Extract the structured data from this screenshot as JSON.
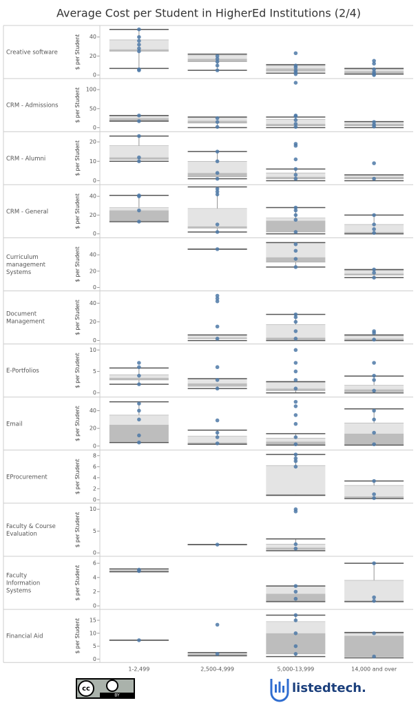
{
  "chart_data": {
    "type": "box",
    "title": "Average Cost per Student in HigherEd Institutions (2/4)",
    "y_label": "$ per Student",
    "categories": [
      "1-2,499",
      "2,500-4,999",
      "5,000-13,999",
      "14,000 and over"
    ],
    "color": "#4e79a7",
    "panels": [
      {
        "label": "Creative software",
        "ylim": [
          -1.5,
          48.5
        ],
        "yticks": [
          0,
          20,
          40
        ],
        "boxes": [
          {
            "min": 7,
            "q1": 25,
            "median": 27,
            "q3": 37,
            "max": 48,
            "points": [
              5,
              6,
              25,
              28,
              32,
              36,
              40,
              48
            ]
          },
          {
            "min": 5,
            "q1": 14,
            "median": 17,
            "q3": 21,
            "max": 22,
            "points": [
              5,
              10,
              14,
              17,
              20
            ]
          },
          {
            "min": 2,
            "q1": 4,
            "median": 7,
            "q3": 10,
            "max": 11,
            "points": [
              1,
              3,
              5,
              8,
              10,
              23
            ]
          },
          {
            "min": 1,
            "q1": 2,
            "median": 4,
            "q3": 6,
            "max": 7,
            "points": [
              0,
              1,
              3,
              6,
              12,
              15
            ]
          }
        ]
      },
      {
        "label": "CRM - Admissions",
        "ylim": [
          -5,
          120
        ],
        "yticks": [
          0,
          50,
          100
        ],
        "boxes": [
          {
            "min": 17,
            "q1": 18,
            "median": 25,
            "q3": 31,
            "max": 32,
            "points": [
              17,
              32
            ]
          },
          {
            "min": 0,
            "q1": 12,
            "median": 18,
            "q3": 27,
            "max": 28,
            "points": [
              2,
              15,
              25
            ]
          },
          {
            "min": 0,
            "q1": 5,
            "median": 10,
            "q3": 22,
            "max": 28,
            "points": [
              2,
              10,
              20,
              30,
              32,
              118
            ]
          },
          {
            "min": 0,
            "q1": 5,
            "median": 10,
            "q3": 15,
            "max": 16,
            "points": [
              3,
              8,
              15
            ]
          }
        ]
      },
      {
        "label": "CRM - Alumni",
        "ylim": [
          -1,
          23.5
        ],
        "yticks": [
          0,
          10,
          20
        ],
        "boxes": [
          {
            "min": 10,
            "q1": 11,
            "median": 12,
            "q3": 18,
            "max": 23,
            "points": [
              10,
              12,
              23
            ]
          },
          {
            "min": 1,
            "q1": 2,
            "median": 4,
            "q3": 10,
            "max": 15,
            "points": [
              1,
              4,
              10,
              15
            ]
          },
          {
            "min": 0,
            "q1": 1,
            "median": 2,
            "q3": 4,
            "max": 6,
            "points": [
              1,
              3,
              6,
              11,
              18,
              19
            ]
          },
          {
            "min": 0,
            "q1": 1,
            "median": 2,
            "q3": 3,
            "max": 3,
            "points": [
              1,
              9
            ]
          }
        ]
      },
      {
        "label": "CRM - General",
        "ylim": [
          -2,
          48.7
        ],
        "yticks": [
          0,
          20,
          40
        ],
        "boxes": [
          {
            "min": 13,
            "q1": 14,
            "median": 25,
            "q3": 28,
            "max": 41,
            "points": [
              13,
              25,
              40,
              41
            ]
          },
          {
            "min": 2,
            "q1": 6,
            "median": 8,
            "q3": 27,
            "max": 50,
            "points": [
              2,
              10,
              42,
              45,
              48
            ]
          },
          {
            "min": 0,
            "q1": 2,
            "median": 14,
            "q3": 17,
            "max": 28,
            "points": [
              2,
              15,
              20,
              25,
              28
            ]
          },
          {
            "min": 0,
            "q1": 1,
            "median": 2,
            "q3": 10,
            "max": 20,
            "points": [
              1,
              5,
              10,
              20
            ]
          }
        ]
      },
      {
        "label": "Curriculum management Systems",
        "ylim": [
          -1.7,
          56.7
        ],
        "yticks": [
          0,
          20,
          40
        ],
        "boxes": [
          null,
          {
            "min": 47,
            "q1": 47,
            "median": 47,
            "q3": 47,
            "max": 47,
            "points": [
              47
            ]
          },
          {
            "min": 25,
            "q1": 31,
            "median": 37,
            "q3": 55,
            "max": 55,
            "points": [
              25,
              35,
              45,
              53
            ]
          },
          {
            "min": 12,
            "q1": 15,
            "median": 17,
            "q3": 21,
            "max": 22,
            "points": [
              12,
              18,
              22
            ]
          }
        ]
      },
      {
        "label": "Document Management",
        "ylim": [
          -1.5,
          49.5
        ],
        "yticks": [
          0,
          20,
          40
        ],
        "boxes": [
          null,
          {
            "min": 0,
            "q1": 2,
            "median": 3,
            "q3": 6,
            "max": 6,
            "points": [
              2,
              15,
              42,
              45,
              48
            ]
          },
          {
            "min": 0,
            "q1": 1,
            "median": 3,
            "q3": 17,
            "max": 28,
            "points": [
              2,
              10,
              20,
              25,
              28
            ]
          },
          {
            "min": 0,
            "q1": 1,
            "median": 2,
            "q3": 5,
            "max": 6,
            "points": [
              1,
              8,
              10
            ]
          }
        ]
      },
      {
        "label": "E-Portfolios",
        "ylim": [
          -0.5,
          10.6
        ],
        "yticks": [
          0,
          5,
          10
        ],
        "boxes": [
          {
            "min": 2,
            "q1": 3,
            "median": 3.5,
            "q3": 4.2,
            "max": 5.8,
            "points": [
              2,
              4,
              6,
              7
            ]
          },
          {
            "min": 1,
            "q1": 1.5,
            "median": 2.2,
            "q3": 3.3,
            "max": 3.3,
            "points": [
              1,
              3,
              6
            ]
          },
          {
            "min": 0,
            "q1": 0.5,
            "median": 1,
            "q3": 2.5,
            "max": 2.6,
            "points": [
              1,
              3,
              5,
              7,
              10
            ]
          },
          {
            "min": 0,
            "q1": 0.3,
            "median": 0.8,
            "q3": 1.8,
            "max": 3.9,
            "points": [
              0.5,
              3,
              4,
              7
            ]
          }
        ]
      },
      {
        "label": "Email",
        "ylim": [
          -2.3,
          51.5
        ],
        "yticks": [
          0,
          20,
          40
        ],
        "boxes": [
          {
            "min": 4,
            "q1": 5,
            "median": 24,
            "q3": 35,
            "max": 50,
            "points": [
              4,
              12,
              30,
              40,
              48
            ]
          },
          {
            "min": 2,
            "q1": 2,
            "median": 4,
            "q3": 11,
            "max": 18,
            "points": [
              3,
              10,
              15,
              29
            ]
          },
          {
            "min": 1,
            "q1": 2,
            "median": 5,
            "q3": 9,
            "max": 14,
            "points": [
              2,
              10,
              25,
              35,
              45,
              50
            ]
          },
          {
            "min": 1,
            "q1": 2,
            "median": 14,
            "q3": 26,
            "max": 42,
            "points": [
              2,
              15,
              30,
              40
            ]
          }
        ]
      },
      {
        "label": "EProcurement",
        "ylim": [
          -0.25,
          8.37
        ],
        "yticks": [
          0,
          2,
          4,
          6,
          8
        ],
        "boxes": [
          null,
          null,
          {
            "min": 0.8,
            "q1": 0.9,
            "median": 1,
            "q3": 6.2,
            "max": 8.2,
            "points": [
              6,
              7,
              7.5,
              8.2
            ]
          },
          {
            "min": 0.2,
            "q1": 0.4,
            "median": 0.6,
            "q3": 2.6,
            "max": 3.4,
            "points": [
              0.3,
              1,
              3.4
            ]
          }
        ]
      },
      {
        "label": "Faculty & Course Evaluation",
        "ylim": [
          -0.3,
          10.6
        ],
        "yticks": [
          0,
          5,
          10
        ],
        "boxes": [
          null,
          {
            "min": 1.9,
            "q1": 1.9,
            "median": 1.9,
            "q3": 1.9,
            "max": 1.9,
            "points": [
              1.9
            ]
          },
          {
            "min": 0.5,
            "q1": 0.8,
            "median": 1.2,
            "q3": 2,
            "max": 3.2,
            "points": [
              1,
              2,
              9.5,
              10
            ]
          },
          null
        ]
      },
      {
        "label": "Faculty Information Systems",
        "ylim": [
          -0.2,
          6.5
        ],
        "yticks": [
          0,
          2,
          4,
          6
        ],
        "boxes": [
          {
            "min": 4.8,
            "q1": 4.9,
            "median": 5,
            "q3": 5.2,
            "max": 5.2,
            "points": [
              4.9,
              5.1
            ]
          },
          null,
          {
            "min": 0.6,
            "q1": 0.7,
            "median": 1.7,
            "q3": 2.8,
            "max": 2.8,
            "points": [
              1,
              2,
              2.8
            ]
          },
          {
            "min": 0.6,
            "q1": 0.7,
            "median": 0.7,
            "q3": 3.6,
            "max": 6,
            "points": [
              0.7,
              1.2,
              6
            ]
          }
        ]
      },
      {
        "label": "Financial Aid",
        "ylim": [
          -0.5,
          17.9
        ],
        "yticks": [
          0,
          5,
          10,
          15
        ],
        "boxes": [
          {
            "min": 7.3,
            "q1": 7.3,
            "median": 7.3,
            "q3": 7.3,
            "max": 7.3,
            "points": [
              7.3
            ]
          },
          {
            "min": 1.3,
            "q1": 1.6,
            "median": 2,
            "q3": 2.4,
            "max": 2.5,
            "points": [
              2,
              13.3
            ]
          },
          {
            "min": 1,
            "q1": 2,
            "median": 10,
            "q3": 14.5,
            "max": 17,
            "points": [
              2,
              5,
              10,
              15,
              17
            ]
          },
          {
            "min": 0.5,
            "q1": 1,
            "median": 9,
            "q3": 10,
            "max": 10.3,
            "points": [
              1,
              10
            ]
          }
        ]
      }
    ]
  },
  "footer": {
    "license_icon": "cc",
    "license": "BY",
    "brand": "listedtech."
  }
}
